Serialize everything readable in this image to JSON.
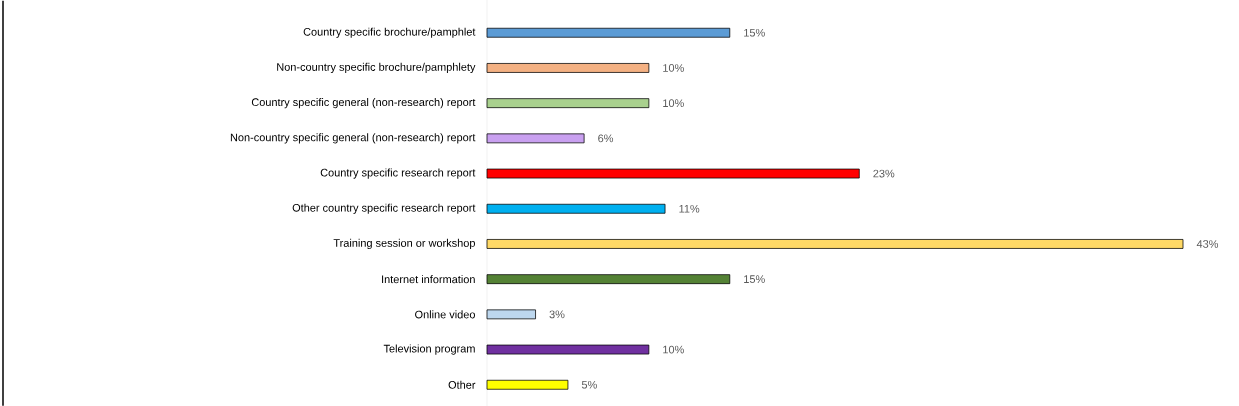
{
  "chart_data": {
    "type": "bar",
    "orientation": "horizontal",
    "categories": [
      "Country specific brochure/pamphlet",
      "Non-country specific brochure/pamphlety",
      "Country specific general (non-research) report",
      "Non-country specific general (non-research) report",
      "Country specific research report",
      "Other country specific research report",
      "Training session or workshop",
      "Internet information",
      "Online video",
      "Television program",
      "Other"
    ],
    "values": [
      15,
      10,
      10,
      6,
      23,
      11,
      43,
      15,
      3,
      10,
      5
    ],
    "value_labels": [
      "15%",
      "10%",
      "10%",
      "6%",
      "23%",
      "11%",
      "43%",
      "15%",
      "3%",
      "10%",
      "5%"
    ],
    "colors": [
      "#5b9bd5",
      "#f4b183",
      "#a9d18e",
      "#c9a0f0",
      "#ff0000",
      "#00b0f0",
      "#ffd966",
      "#548235",
      "#bdd7ee",
      "#7030a0",
      "#ffff00"
    ]
  }
}
